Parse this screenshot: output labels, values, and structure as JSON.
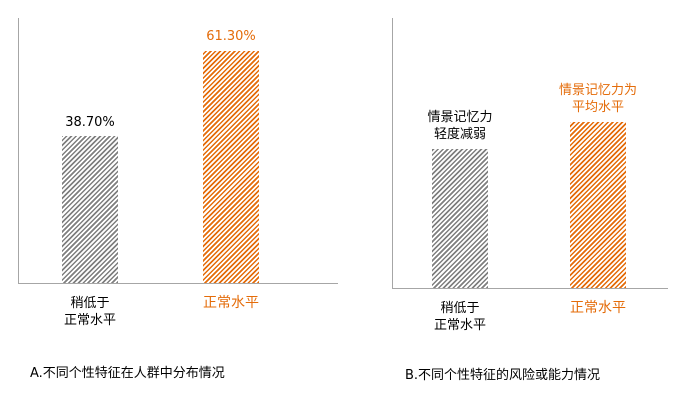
{
  "chart_data": [
    {
      "type": "bar",
      "title": "A.不同个性特征在人群中分布情况",
      "categories": [
        "稍低于\n正常水平",
        "正常水平"
      ],
      "values": [
        38.7,
        61.3
      ],
      "value_labels": [
        "38.70%",
        "61.30%"
      ],
      "colors": [
        "#7f7f7f",
        "#e46c0a"
      ],
      "label_colors": [
        "#000000",
        "#e46c0a"
      ],
      "ylim": [
        0,
        70
      ]
    },
    {
      "type": "bar",
      "title": "B.不同个性特征的风险或能力情况",
      "categories": [
        "稍低于\n正常水平",
        "正常水平"
      ],
      "values": [
        36,
        43
      ],
      "annotations": [
        "情景记忆力\n轻度减弱",
        "情景记忆力为\n平均水平"
      ],
      "colors": [
        "#7f7f7f",
        "#e46c0a"
      ],
      "label_colors": [
        "#000000",
        "#e46c0a"
      ],
      "ylim": [
        0,
        70
      ]
    }
  ]
}
